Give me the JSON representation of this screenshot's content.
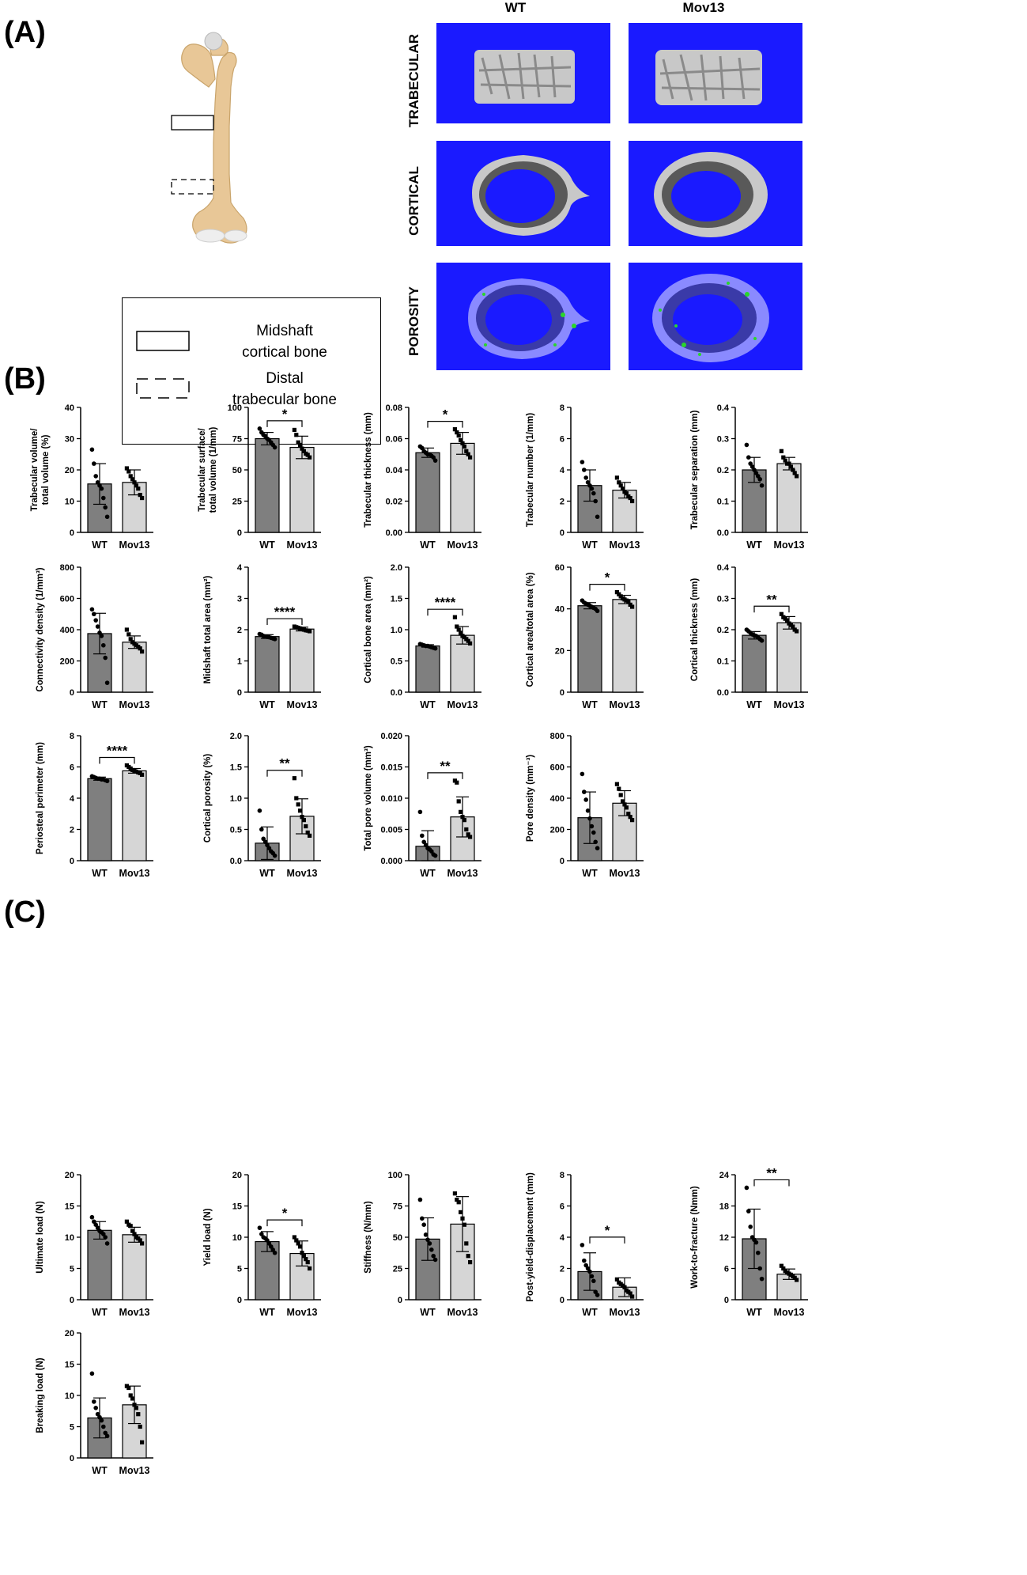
{
  "panels": {
    "a": "(A)",
    "b": "(B)",
    "c": "(C)"
  },
  "colors": {
    "scan_bg": "#1a1aff",
    "wt_bar": "#7f7f7f",
    "mov_bar": "#d6d6d6",
    "bone_light": "#c8c8c8",
    "bone_dark": "#595959",
    "pore_green": "#2ad62a"
  },
  "scans": {
    "columns": [
      "WT",
      "Mov13"
    ],
    "rows": [
      "TRABECULAR",
      "CORTICAL",
      "POROSITY"
    ]
  },
  "legend": {
    "solid": "Midshaft\ncortical bone",
    "dashed": "Distal\ntrabecular bone"
  },
  "chart_data": [
    {
      "type": "bar",
      "ylabel": "Trabecular volume/\ntotal volume (%)",
      "ylim": [
        0,
        40
      ],
      "ticks": [
        0,
        10,
        20,
        30,
        40
      ],
      "categories": [
        "WT",
        "Mov13"
      ],
      "values": [
        15.5,
        16
      ],
      "errors": [
        6.5,
        4
      ],
      "points": [
        [
          26.5,
          22,
          18,
          16,
          15,
          14,
          11,
          8,
          5
        ],
        [
          20.5,
          19.5,
          18,
          17,
          16,
          15,
          14,
          12,
          11
        ]
      ],
      "sig": ""
    },
    {
      "type": "bar",
      "ylabel": "Trabecular surface/\ntotal volume (1/mm)",
      "ylim": [
        0,
        100
      ],
      "ticks": [
        0,
        25,
        50,
        75,
        100
      ],
      "categories": [
        "WT",
        "Mov13"
      ],
      "values": [
        75,
        68
      ],
      "errors": [
        5,
        9
      ],
      "points": [
        [
          83,
          80,
          78,
          77,
          75,
          74,
          72,
          70,
          68
        ],
        [
          82,
          78,
          72,
          70,
          67,
          65,
          63,
          62,
          60
        ]
      ],
      "sig": "*"
    },
    {
      "type": "bar",
      "ylabel": "Trabecular thickness (mm)",
      "ylim": [
        0,
        0.08
      ],
      "ticks": [
        "0.00",
        "0.02",
        "0.04",
        "0.06",
        "0.08"
      ],
      "categories": [
        "WT",
        "Mov13"
      ],
      "values": [
        0.051,
        0.057
      ],
      "errors": [
        0.003,
        0.007
      ],
      "points": [
        [
          0.055,
          0.054,
          0.052,
          0.051,
          0.05,
          0.05,
          0.049,
          0.048,
          0.046
        ],
        [
          0.066,
          0.064,
          0.062,
          0.059,
          0.057,
          0.055,
          0.052,
          0.05,
          0.048
        ]
      ],
      "sig": "*"
    },
    {
      "type": "bar",
      "ylabel": "Trabecular number (1/mm)",
      "ylim": [
        0,
        8
      ],
      "ticks": [
        0,
        2,
        4,
        6,
        8
      ],
      "categories": [
        "WT",
        "Mov13"
      ],
      "values": [
        3,
        2.7
      ],
      "errors": [
        1,
        0.5
      ],
      "points": [
        [
          4.5,
          4,
          3.5,
          3.2,
          3,
          2.8,
          2.5,
          2,
          1
        ],
        [
          3.5,
          3.2,
          3,
          2.8,
          2.6,
          2.5,
          2.3,
          2.2,
          2
        ]
      ],
      "sig": ""
    },
    {
      "type": "bar",
      "ylabel": "Trabecular separation (mm)",
      "ylim": [
        0,
        0.4
      ],
      "ticks": [
        "0.0",
        "0.1",
        "0.2",
        "0.3",
        "0.4"
      ],
      "categories": [
        "WT",
        "Mov13"
      ],
      "values": [
        0.2,
        0.22
      ],
      "errors": [
        0.04,
        0.02
      ],
      "points": [
        [
          0.28,
          0.24,
          0.22,
          0.21,
          0.2,
          0.19,
          0.18,
          0.17,
          0.15
        ],
        [
          0.26,
          0.24,
          0.23,
          0.22,
          0.22,
          0.21,
          0.2,
          0.19,
          0.18
        ]
      ],
      "sig": ""
    },
    {
      "type": "bar",
      "ylabel": "Connectivity density (1/mm³)",
      "ylim": [
        0,
        800
      ],
      "ticks": [
        0,
        200,
        400,
        600,
        800
      ],
      "categories": [
        "WT",
        "Mov13"
      ],
      "values": [
        375,
        320
      ],
      "errors": [
        130,
        40
      ],
      "points": [
        [
          530,
          500,
          460,
          420,
          380,
          360,
          300,
          220,
          60
        ],
        [
          400,
          370,
          340,
          320,
          310,
          300,
          290,
          280,
          260
        ]
      ],
      "sig": ""
    },
    {
      "type": "bar",
      "ylabel": "Midshaft total area (mm²)",
      "ylim": [
        0,
        4
      ],
      "ticks": [
        0,
        1,
        2,
        3,
        4
      ],
      "categories": [
        "WT",
        "Mov13"
      ],
      "values": [
        1.78,
        2.02
      ],
      "errors": [
        0.06,
        0.06
      ],
      "points": [
        [
          1.86,
          1.84,
          1.8,
          1.78,
          1.77,
          1.76,
          1.74,
          1.72,
          1.7
        ],
        [
          2.1,
          2.08,
          2.06,
          2.04,
          2.02,
          2,
          1.98,
          1.97,
          1.95
        ]
      ],
      "sig": "****"
    },
    {
      "type": "bar",
      "ylabel": "Cortical bone area (mm²)",
      "ylim": [
        0,
        2
      ],
      "ticks": [
        "0.0",
        "0.5",
        "1.0",
        "1.5",
        "2.0"
      ],
      "categories": [
        "WT",
        "Mov13"
      ],
      "values": [
        0.74,
        0.91
      ],
      "errors": [
        0.02,
        0.14
      ],
      "points": [
        [
          0.77,
          0.76,
          0.75,
          0.74,
          0.74,
          0.73,
          0.72,
          0.71,
          0.7
        ],
        [
          1.2,
          1.05,
          1,
          0.95,
          0.9,
          0.88,
          0.85,
          0.82,
          0.78
        ]
      ],
      "sig": "****"
    },
    {
      "type": "bar",
      "ylabel": "Cortical area/total area (%)",
      "ylim": [
        0,
        60
      ],
      "ticks": [
        0,
        20,
        40,
        60
      ],
      "categories": [
        "WT",
        "Mov13"
      ],
      "values": [
        41.5,
        44.5
      ],
      "errors": [
        1.5,
        2
      ],
      "points": [
        [
          44,
          43,
          42.5,
          42,
          41.5,
          41,
          40.5,
          40,
          39
        ],
        [
          48,
          47,
          46,
          45,
          44.5,
          44,
          43.5,
          42,
          41
        ]
      ],
      "sig": "*"
    },
    {
      "type": "bar",
      "ylabel": "Cortical thickness (mm)",
      "ylim": [
        0,
        0.4
      ],
      "ticks": [
        "0.0",
        "0.1",
        "0.2",
        "0.3",
        "0.4"
      ],
      "categories": [
        "WT",
        "Mov13"
      ],
      "values": [
        0.182,
        0.222
      ],
      "errors": [
        0.012,
        0.02
      ],
      "points": [
        [
          0.2,
          0.195,
          0.19,
          0.185,
          0.182,
          0.18,
          0.175,
          0.17,
          0.165
        ],
        [
          0.25,
          0.24,
          0.235,
          0.23,
          0.22,
          0.215,
          0.21,
          0.2,
          0.195
        ]
      ],
      "sig": "**"
    },
    {
      "type": "bar",
      "ylabel": "Periosteal perimeter (mm)",
      "ylim": [
        0,
        8
      ],
      "ticks": [
        0,
        2,
        4,
        6,
        8
      ],
      "categories": [
        "WT",
        "Mov13"
      ],
      "values": [
        5.25,
        5.75
      ],
      "errors": [
        0.1,
        0.15
      ],
      "points": [
        [
          5.4,
          5.35,
          5.3,
          5.25,
          5.25,
          5.2,
          5.2,
          5.15,
          5.1
        ],
        [
          6.1,
          6,
          5.9,
          5.8,
          5.75,
          5.7,
          5.65,
          5.6,
          5.5
        ]
      ],
      "sig": "****"
    },
    {
      "type": "bar",
      "ylabel": "Cortical porosity (%)",
      "ylim": [
        0,
        2
      ],
      "ticks": [
        "0.0",
        "0.5",
        "1.0",
        "1.5",
        "2.0"
      ],
      "categories": [
        "WT",
        "Mov13"
      ],
      "values": [
        0.28,
        0.71
      ],
      "errors": [
        0.26,
        0.28
      ],
      "points": [
        [
          0.8,
          0.5,
          0.35,
          0.3,
          0.25,
          0.2,
          0.15,
          0.12,
          0.08
        ],
        [
          1.32,
          1.0,
          0.9,
          0.8,
          0.7,
          0.65,
          0.55,
          0.45,
          0.4
        ]
      ],
      "sig": "**"
    },
    {
      "type": "bar",
      "ylabel": "Total pore volume (mm³)",
      "ylim": [
        0,
        0.02
      ],
      "ticks": [
        "0.000",
        "0.005",
        "0.010",
        "0.015",
        "0.020"
      ],
      "categories": [
        "WT",
        "Mov13"
      ],
      "values": [
        0.0023,
        0.007
      ],
      "errors": [
        0.0025,
        0.0032
      ],
      "points": [
        [
          0.0078,
          0.004,
          0.003,
          0.0025,
          0.002,
          0.0018,
          0.0015,
          0.001,
          0.0008
        ],
        [
          0.0128,
          0.0125,
          0.0095,
          0.0078,
          0.007,
          0.0065,
          0.005,
          0.0042,
          0.0038
        ]
      ],
      "sig": "**"
    },
    {
      "type": "bar",
      "ylabel": "Pore density (mm⁻³)",
      "ylim": [
        0,
        800
      ],
      "ticks": [
        0,
        200,
        400,
        600,
        800
      ],
      "categories": [
        "WT",
        "Mov13"
      ],
      "values": [
        275,
        368
      ],
      "errors": [
        165,
        80
      ],
      "points": [
        [
          555,
          440,
          390,
          320,
          270,
          220,
          180,
          120,
          80
        ],
        [
          490,
          460,
          420,
          380,
          360,
          340,
          300,
          280,
          260
        ]
      ],
      "sig": ""
    },
    {
      "type": "bar",
      "ylabel": "Ultimate load (N)",
      "ylim": [
        0,
        20
      ],
      "ticks": [
        0,
        5,
        10,
        15,
        20
      ],
      "categories": [
        "WT",
        "Mov13"
      ],
      "values": [
        11.1,
        10.4
      ],
      "errors": [
        1.4,
        1.2
      ],
      "points": [
        [
          13.2,
          12.5,
          12,
          11.5,
          11,
          10.8,
          10.5,
          10,
          9
        ],
        [
          12.5,
          12,
          11.8,
          11,
          10.5,
          10,
          9.8,
          9.5,
          9
        ]
      ],
      "sig": ""
    },
    {
      "type": "bar",
      "ylabel": "Yield load (N)",
      "ylim": [
        0,
        20
      ],
      "ticks": [
        0,
        5,
        10,
        15,
        20
      ],
      "categories": [
        "WT",
        "Mov13"
      ],
      "values": [
        9.3,
        7.4
      ],
      "errors": [
        1.6,
        2
      ],
      "points": [
        [
          11.5,
          10.5,
          10,
          9.8,
          9.5,
          9,
          8.5,
          8,
          7.5
        ],
        [
          10,
          9.5,
          9,
          8.5,
          7.5,
          7,
          6.5,
          6,
          5
        ]
      ],
      "sig": "*"
    },
    {
      "type": "bar",
      "ylabel": "Stiffness (N/mm)",
      "ylim": [
        0,
        100
      ],
      "ticks": [
        0,
        25,
        50,
        75,
        100
      ],
      "categories": [
        "WT",
        "Mov13"
      ],
      "values": [
        48.5,
        60.5
      ],
      "errors": [
        17,
        22
      ],
      "points": [
        [
          80,
          65,
          60,
          52,
          48,
          45,
          40,
          35,
          32
        ],
        [
          85,
          80,
          78,
          70,
          65,
          60,
          45,
          35,
          30
        ]
      ],
      "sig": ""
    },
    {
      "type": "bar",
      "ylabel": "Post-yield-displacement (mm)",
      "ylim": [
        0,
        8
      ],
      "ticks": [
        0,
        2,
        4,
        6,
        8
      ],
      "categories": [
        "WT",
        "Mov13"
      ],
      "values": [
        1.8,
        0.8
      ],
      "errors": [
        1.2,
        0.6
      ],
      "points": [
        [
          3.5,
          2.5,
          2.2,
          2,
          1.8,
          1.5,
          1.2,
          0.5,
          0.3
        ],
        [
          1.3,
          1.1,
          1,
          0.9,
          0.8,
          0.6,
          0.5,
          0.4,
          0.2
        ]
      ],
      "sig": "*"
    },
    {
      "type": "bar",
      "ylabel": "Work-to-fracture (Nmm)",
      "ylim": [
        0,
        24
      ],
      "ticks": [
        0,
        6,
        12,
        18,
        24
      ],
      "categories": [
        "WT",
        "Mov13"
      ],
      "values": [
        11.7,
        4.9
      ],
      "errors": [
        5.7,
        1
      ],
      "points": [
        [
          21.5,
          17,
          14,
          12,
          11.5,
          11,
          9,
          6,
          4
        ],
        [
          6.5,
          6,
          5.5,
          5.2,
          5,
          4.8,
          4.5,
          4.2,
          3.8
        ]
      ],
      "sig": "**"
    },
    {
      "type": "bar",
      "ylabel": "Breaking load (N)",
      "ylim": [
        0,
        20
      ],
      "ticks": [
        0,
        5,
        10,
        15,
        20
      ],
      "categories": [
        "WT",
        "Mov13"
      ],
      "values": [
        6.4,
        8.5
      ],
      "errors": [
        3.2,
        3
      ],
      "points": [
        [
          13.5,
          9,
          8,
          7,
          6.5,
          6,
          5,
          4,
          3.5
        ],
        [
          11.5,
          11.2,
          10,
          9.5,
          8.5,
          8,
          7,
          5,
          2.5
        ]
      ],
      "sig": ""
    }
  ]
}
